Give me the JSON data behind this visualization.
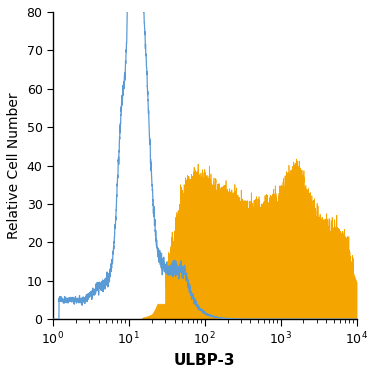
{
  "xlabel": "ULBP-3",
  "ylabel": "Relative Cell Number",
  "xlim_log": [
    0,
    4
  ],
  "ylim": [
    0,
    80
  ],
  "yticks": [
    0,
    10,
    20,
    30,
    40,
    50,
    60,
    70,
    80
  ],
  "blue_color": "#5b9bd5",
  "orange_color": "#f5a500",
  "background_color": "#ffffff",
  "xlabel_fontsize": 11,
  "ylabel_fontsize": 10,
  "tick_fontsize": 9
}
